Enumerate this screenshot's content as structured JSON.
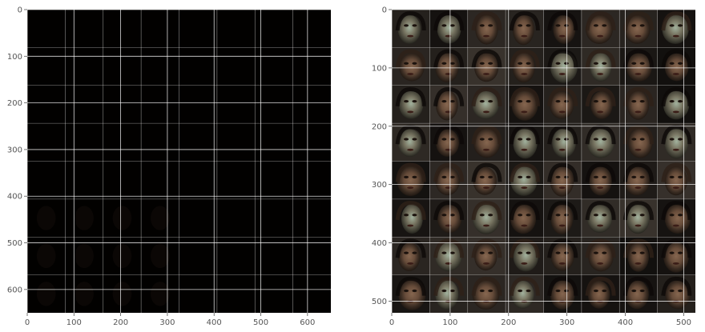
{
  "chart_data": [
    {
      "type": "heatmap",
      "title": "",
      "xlabel": "",
      "ylabel": "",
      "xlim": [
        0,
        650
      ],
      "ylim": [
        650,
        0
      ],
      "xticks": [
        0,
        100,
        200,
        300,
        400,
        500,
        600
      ],
      "yticks": [
        0,
        100,
        200,
        300,
        400,
        500,
        600
      ],
      "grid": true,
      "image_content": "8x8 grid of generated face images, nearly black",
      "tile_grid": [
        8,
        8
      ],
      "background": "#000000"
    },
    {
      "type": "heatmap",
      "title": "",
      "xlabel": "",
      "ylabel": "",
      "xlim": [
        0,
        520
      ],
      "ylim": [
        520,
        0
      ],
      "xticks": [
        0,
        100,
        200,
        300,
        400,
        500
      ],
      "yticks": [
        0,
        100,
        200,
        300,
        400,
        500
      ],
      "grid": true,
      "image_content": "8x8 grid of generated face images",
      "tile_grid": [
        8,
        8
      ],
      "background": "#1a1410"
    }
  ],
  "colors": {
    "axes_background": "#ebebeb",
    "tick_label": "#555555",
    "grid_line": "#ffffff",
    "left_image": "#020100",
    "right_image_base": "#15110d",
    "face_skin": "#6b4f3c",
    "face_highlight": "#9fc2b0",
    "face_dark": "#1c1410"
  }
}
